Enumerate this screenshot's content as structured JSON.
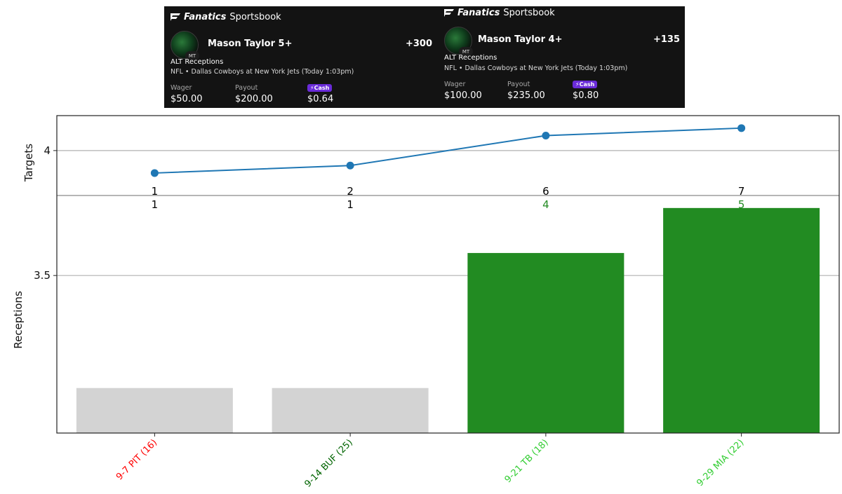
{
  "brand": {
    "bold": "Fanatics",
    "regular": "Sportsbook"
  },
  "slips": [
    {
      "avatar_text": "MT",
      "player": "Mason Taylor 5+",
      "odds": "+300",
      "market": "ALT Receptions",
      "game": "NFL • Dallas Cowboys at New York Jets (Today 1:03pm)",
      "wager_label": "Wager",
      "wager": "$50.00",
      "payout_label": "Payout",
      "payout": "$200.00",
      "cash_label": "Cash",
      "cash": "$0.64"
    },
    {
      "avatar_text": "MT",
      "player": "Mason Taylor 4+",
      "odds": "+135",
      "market": "ALT Receptions",
      "game": "NFL • Dallas Cowboys at New York Jets (Today 1:03pm)",
      "wager_label": "Wager",
      "wager": "$100.00",
      "payout_label": "Payout",
      "payout": "$235.00",
      "cash_label": "Cash",
      "cash": "$0.80"
    }
  ],
  "colors": {
    "bar_hit": "#228b22",
    "bar_miss": "#d3d3d3",
    "line": "#1f77b4",
    "label_hit": "#228b22",
    "label_neutral": "#000000",
    "cash_badge": "#6a2bd9"
  },
  "chart_data": {
    "type": "bar",
    "categories": [
      "9-7 PIT (16)",
      "9-14 BUF (25)",
      "9-21 TB (18)",
      "9-29 MIA (22)"
    ],
    "category_colors": [
      "#ff0000",
      "#006400",
      "#32cd32",
      "#32cd32"
    ],
    "bars": {
      "name": "Receptions",
      "values": [
        3.05,
        3.05,
        3.59,
        3.77
      ],
      "data_labels": [
        "1",
        "1",
        "4",
        "5"
      ],
      "hit": [
        false,
        false,
        true,
        true
      ]
    },
    "line": {
      "name": "Targets",
      "values": [
        3.91,
        3.94,
        4.06,
        4.09
      ],
      "data_labels": [
        "1",
        "2",
        "6",
        "7"
      ]
    },
    "upper_panel": {
      "ylabel": "Targets",
      "ylim": [
        3.82,
        4.14
      ],
      "yticks": [
        4
      ],
      "ytick_labels": [
        "4"
      ]
    },
    "lower_panel": {
      "ylabel": "Receptions",
      "ylim": [
        2.87,
        3.82
      ],
      "yticks": [
        3.5
      ],
      "ytick_labels": [
        "3.5"
      ]
    },
    "grid": true
  }
}
